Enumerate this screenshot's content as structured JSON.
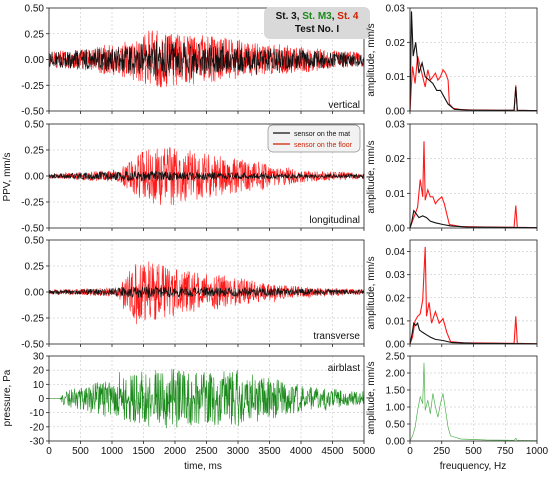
{
  "chart_data": [
    {
      "type": "line",
      "id": "time-vertical",
      "panel_label": "vertical",
      "xlim": [
        0,
        5000
      ],
      "ylim": [
        -0.5,
        0.5
      ],
      "yticks": [
        "0.50",
        "0.25",
        "0.00",
        "-0.25",
        "-0.50"
      ],
      "annotation": {
        "line1": [
          {
            "text": "St. 3, ",
            "color": "#111111"
          },
          {
            "text": "St. M3",
            "color": "#1a8a1a"
          },
          {
            "text": ", ",
            "color": "#111111"
          },
          {
            "text": "St. 4",
            "color": "#cc2200"
          }
        ],
        "line2": "Test No. I"
      },
      "series": [
        {
          "color": "#ff1a1a",
          "peak": 0.3,
          "envelope": [
            [
              0,
              0.08
            ],
            [
              600,
              0.11
            ],
            [
              1200,
              0.18
            ],
            [
              1600,
              0.29
            ],
            [
              2200,
              0.25
            ],
            [
              2800,
              0.22
            ],
            [
              3200,
              0.17
            ],
            [
              3800,
              0.15
            ],
            [
              4500,
              0.09
            ],
            [
              5000,
              0.07
            ]
          ]
        },
        {
          "color": "#111111",
          "peak": 0.22,
          "envelope": [
            [
              0,
              0.07
            ],
            [
              600,
              0.1
            ],
            [
              1200,
              0.13
            ],
            [
              1700,
              0.18
            ],
            [
              2300,
              0.16
            ],
            [
              2900,
              0.13
            ],
            [
              3500,
              0.11
            ],
            [
              4200,
              0.09
            ],
            [
              5000,
              0.06
            ]
          ]
        }
      ]
    },
    {
      "type": "line",
      "id": "time-longitudinal",
      "panel_label": "longitudinal",
      "xlim": [
        0,
        5000
      ],
      "ylim": [
        -0.5,
        0.5
      ],
      "yticks": [
        "0.50",
        "0.25",
        "0.00",
        "-0.25",
        "-0.50"
      ],
      "ylabel": "PPV, mm/s",
      "legend": {
        "position": "top-right",
        "entries": [
          {
            "label": "sensor on the mat",
            "color": "#111111"
          },
          {
            "label": "sensor on the floor",
            "color": "#cc2200"
          }
        ]
      },
      "series": [
        {
          "color": "#ff1a1a",
          "peak": 0.33,
          "envelope": [
            [
              0,
              0.02
            ],
            [
              500,
              0.04
            ],
            [
              1100,
              0.06
            ],
            [
              1500,
              0.25
            ],
            [
              1900,
              0.3
            ],
            [
              2400,
              0.22
            ],
            [
              3000,
              0.17
            ],
            [
              3600,
              0.1
            ],
            [
              4200,
              0.05
            ],
            [
              5000,
              0.03
            ]
          ]
        },
        {
          "color": "#111111",
          "peak": 0.08,
          "envelope": [
            [
              0,
              0.02
            ],
            [
              800,
              0.04
            ],
            [
              1500,
              0.05
            ],
            [
              2300,
              0.04
            ],
            [
              3200,
              0.03
            ],
            [
              4200,
              0.02
            ],
            [
              5000,
              0.02
            ]
          ]
        }
      ]
    },
    {
      "type": "line",
      "id": "time-transverse",
      "panel_label": "transverse",
      "xlim": [
        0,
        5000
      ],
      "ylim": [
        -0.5,
        0.5
      ],
      "yticks": [
        "0.50",
        "0.25",
        "0.00",
        "-0.25",
        "-0.50"
      ],
      "series": [
        {
          "color": "#ff1a1a",
          "peak": 0.42,
          "envelope": [
            [
              0,
              0.02
            ],
            [
              500,
              0.03
            ],
            [
              1100,
              0.05
            ],
            [
              1400,
              0.32
            ],
            [
              1700,
              0.28
            ],
            [
              2200,
              0.2
            ],
            [
              2800,
              0.16
            ],
            [
              3500,
              0.08
            ],
            [
              4300,
              0.04
            ],
            [
              5000,
              0.03
            ]
          ]
        },
        {
          "color": "#111111",
          "peak": 0.1,
          "envelope": [
            [
              0,
              0.02
            ],
            [
              800,
              0.03
            ],
            [
              1500,
              0.06
            ],
            [
              2200,
              0.05
            ],
            [
              3200,
              0.04
            ],
            [
              4200,
              0.03
            ],
            [
              5000,
              0.02
            ]
          ]
        }
      ]
    },
    {
      "type": "line",
      "id": "time-airblast",
      "panel_label": "airblast",
      "xlim": [
        0,
        5000
      ],
      "ylim": [
        -30,
        30
      ],
      "yticks": [
        "30",
        "20",
        "10",
        "0",
        "-10",
        "-20",
        "-30"
      ],
      "xticks": [
        "0",
        "500",
        "1000",
        "1500",
        "2000",
        "2500",
        "3000",
        "3500",
        "4000",
        "4500",
        "5000"
      ],
      "xlabel": "time, ms",
      "ylabel": "pressure, Pa",
      "series": [
        {
          "color": "#1a8a1a",
          "peak": 27,
          "envelope": [
            [
              0,
              0
            ],
            [
              170,
              0
            ],
            [
              230,
              5
            ],
            [
              800,
              12
            ],
            [
              1200,
              16
            ],
            [
              1800,
              22
            ],
            [
              2200,
              20
            ],
            [
              2600,
              19
            ],
            [
              3000,
              20
            ],
            [
              3500,
              15
            ],
            [
              4000,
              10
            ],
            [
              4500,
              7
            ],
            [
              5000,
              4
            ]
          ]
        }
      ]
    },
    {
      "type": "line",
      "id": "spectrum-vertical",
      "xlim": [
        0,
        1000
      ],
      "ylim": [
        0,
        0.03
      ],
      "yticks": [
        "0.03",
        "0.02",
        "0.01",
        "0.00"
      ],
      "ylabel": "amplitude, mm/s",
      "series": [
        {
          "color": "#ff1a1a",
          "points": [
            [
              0,
              0.0
            ],
            [
              20,
              0.013
            ],
            [
              40,
              0.008
            ],
            [
              60,
              0.016
            ],
            [
              80,
              0.013
            ],
            [
              100,
              0.01
            ],
            [
              120,
              0.007
            ],
            [
              140,
              0.012
            ],
            [
              160,
              0.009
            ],
            [
              180,
              0.01
            ],
            [
              200,
              0.011
            ],
            [
              220,
              0.009
            ],
            [
              240,
              0.01
            ],
            [
              260,
              0.012
            ],
            [
              280,
              0.011
            ],
            [
              300,
              0.009
            ],
            [
              310,
              0.002
            ],
            [
              340,
              0.0008
            ],
            [
              400,
              0.0004
            ],
            [
              500,
              0.0003
            ],
            [
              600,
              0.0003
            ],
            [
              700,
              0.0002
            ],
            [
              820,
              0.0002
            ],
            [
              833,
              0.0075
            ],
            [
              845,
              0.0002
            ],
            [
              1000,
              0.0001
            ]
          ]
        },
        {
          "color": "#111111",
          "points": [
            [
              0,
              0.0
            ],
            [
              12,
              0.029
            ],
            [
              25,
              0.016
            ],
            [
              45,
              0.02
            ],
            [
              70,
              0.011
            ],
            [
              95,
              0.014
            ],
            [
              120,
              0.01
            ],
            [
              150,
              0.009
            ],
            [
              180,
              0.008
            ],
            [
              210,
              0.006
            ],
            [
              240,
              0.006
            ],
            [
              270,
              0.004
            ],
            [
              300,
              0.002
            ],
            [
              350,
              0.0005
            ],
            [
              450,
              0.0003
            ],
            [
              600,
              0.0002
            ],
            [
              820,
              0.0002
            ],
            [
              833,
              0.007
            ],
            [
              845,
              0.0002
            ],
            [
              1000,
              0.0001
            ]
          ]
        }
      ]
    },
    {
      "type": "line",
      "id": "spectrum-longitudinal",
      "xlim": [
        0,
        1000
      ],
      "ylim": [
        0,
        0.03
      ],
      "yticks": [
        "0.03",
        "0.02",
        "0.01",
        "0.00"
      ],
      "ylabel": "amplitude, mm/s",
      "series": [
        {
          "color": "#ff1a1a",
          "points": [
            [
              0,
              0.0
            ],
            [
              20,
              0.002
            ],
            [
              40,
              0.004
            ],
            [
              60,
              0.006
            ],
            [
              80,
              0.014
            ],
            [
              100,
              0.009
            ],
            [
              110,
              0.025
            ],
            [
              120,
              0.008
            ],
            [
              140,
              0.011
            ],
            [
              160,
              0.009
            ],
            [
              180,
              0.009
            ],
            [
              200,
              0.007
            ],
            [
              220,
              0.008
            ],
            [
              250,
              0.009
            ],
            [
              270,
              0.007
            ],
            [
              290,
              0.004
            ],
            [
              310,
              0.001
            ],
            [
              400,
              0.0004
            ],
            [
              600,
              0.0003
            ],
            [
              820,
              0.0002
            ],
            [
              833,
              0.0065
            ],
            [
              845,
              0.0002
            ],
            [
              1000,
              0.0001
            ]
          ]
        },
        {
          "color": "#111111",
          "points": [
            [
              0,
              0.0
            ],
            [
              15,
              0.002
            ],
            [
              30,
              0.005
            ],
            [
              50,
              0.004
            ],
            [
              70,
              0.003
            ],
            [
              100,
              0.0035
            ],
            [
              130,
              0.003
            ],
            [
              160,
              0.002
            ],
            [
              200,
              0.0015
            ],
            [
              260,
              0.001
            ],
            [
              320,
              0.0006
            ],
            [
              450,
              0.0003
            ],
            [
              700,
              0.0002
            ],
            [
              1000,
              0.0001
            ]
          ]
        }
      ]
    },
    {
      "type": "line",
      "id": "spectrum-transverse",
      "xlim": [
        0,
        1000
      ],
      "ylim": [
        0,
        0.045
      ],
      "yticks": [
        "0.04",
        "0.03",
        "0.02",
        "0.01",
        "0.00"
      ],
      "ylabel": "amplitude, mm/s",
      "series": [
        {
          "color": "#ff1a1a",
          "points": [
            [
              0,
              0.0
            ],
            [
              20,
              0.003
            ],
            [
              40,
              0.01
            ],
            [
              60,
              0.012
            ],
            [
              80,
              0.013
            ],
            [
              100,
              0.019
            ],
            [
              120,
              0.042
            ],
            [
              130,
              0.012
            ],
            [
              150,
              0.018
            ],
            [
              170,
              0.009
            ],
            [
              200,
              0.014
            ],
            [
              230,
              0.009
            ],
            [
              260,
              0.011
            ],
            [
              290,
              0.005
            ],
            [
              320,
              0.001
            ],
            [
              420,
              0.0005
            ],
            [
              600,
              0.0004
            ],
            [
              820,
              0.0003
            ],
            [
              833,
              0.012
            ],
            [
              845,
              0.0003
            ],
            [
              1000,
              0.0001
            ]
          ]
        },
        {
          "color": "#111111",
          "points": [
            [
              0,
              0.0
            ],
            [
              15,
              0.004
            ],
            [
              30,
              0.009
            ],
            [
              45,
              0.008
            ],
            [
              60,
              0.009
            ],
            [
              75,
              0.006
            ],
            [
              100,
              0.005
            ],
            [
              130,
              0.004
            ],
            [
              160,
              0.003
            ],
            [
              200,
              0.002
            ],
            [
              260,
              0.0015
            ],
            [
              330,
              0.0006
            ],
            [
              500,
              0.0003
            ],
            [
              1000,
              0.0001
            ]
          ]
        }
      ]
    },
    {
      "type": "line",
      "id": "spectrum-airblast",
      "xlim": [
        0,
        1000
      ],
      "ylim": [
        0,
        2.5
      ],
      "yticks": [
        "2.50",
        "2.00",
        "1.50",
        "1.00",
        "0.50",
        "0.00"
      ],
      "xticks": [
        "0",
        "250",
        "500",
        "750",
        "1000"
      ],
      "xlabel": "freuquency, Hz",
      "ylabel": "amplitude, mm/s",
      "series": [
        {
          "color": "#4fb04f",
          "points": [
            [
              0,
              0.0
            ],
            [
              20,
              0.15
            ],
            [
              40,
              0.4
            ],
            [
              60,
              0.9
            ],
            [
              80,
              1.3
            ],
            [
              100,
              1.1
            ],
            [
              110,
              2.3
            ],
            [
              120,
              0.9
            ],
            [
              140,
              1.2
            ],
            [
              160,
              0.8
            ],
            [
              180,
              1.4
            ],
            [
              200,
              1.0
            ],
            [
              220,
              0.7
            ],
            [
              240,
              1.1
            ],
            [
              260,
              1.4
            ],
            [
              280,
              0.9
            ],
            [
              300,
              0.4
            ],
            [
              320,
              0.15
            ],
            [
              400,
              0.06
            ],
            [
              600,
              0.03
            ],
            [
              820,
              0.02
            ],
            [
              833,
              0.08
            ],
            [
              845,
              0.02
            ],
            [
              1000,
              0.01
            ]
          ]
        }
      ]
    }
  ]
}
